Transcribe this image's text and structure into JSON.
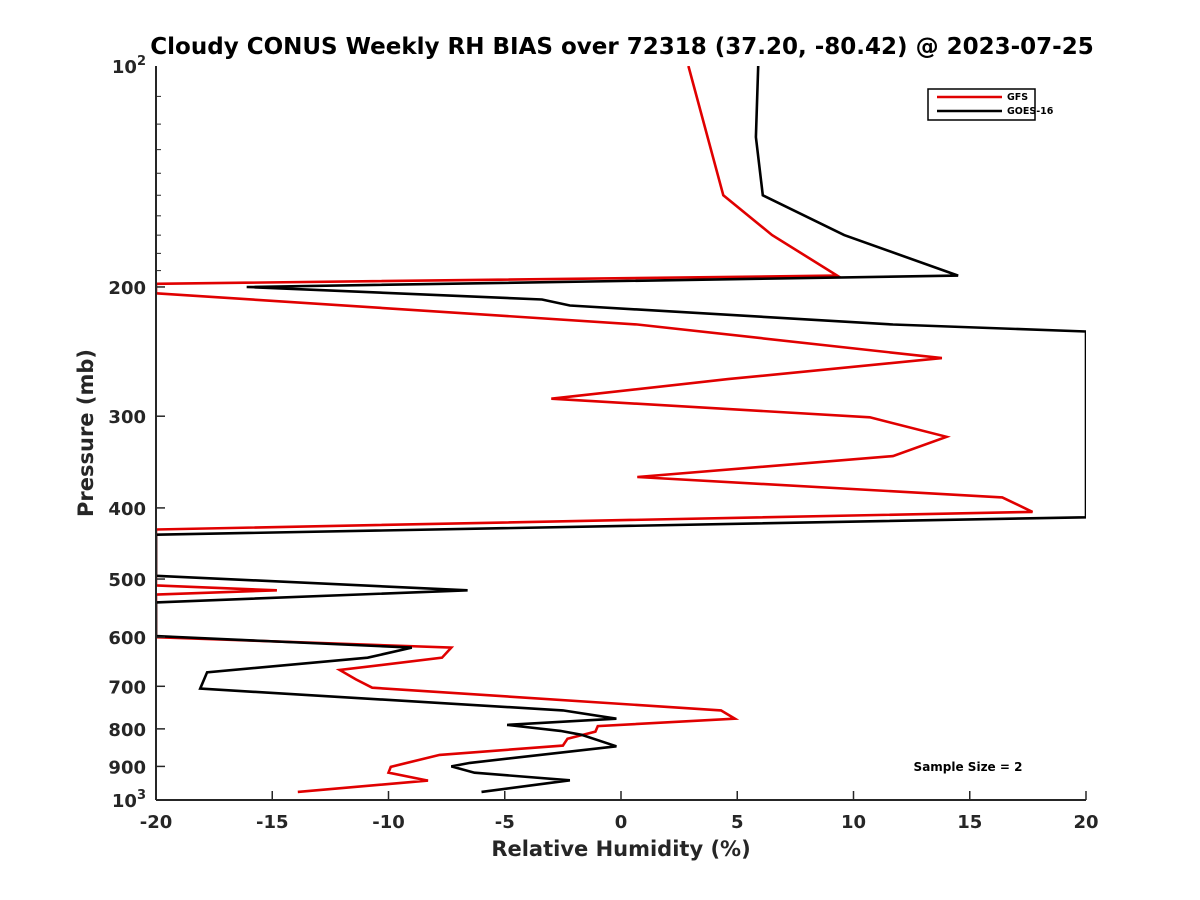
{
  "chart_data": {
    "type": "line",
    "title": "Cloudy CONUS Weekly RH BIAS over 72318 (37.20, -80.42) @ 2023-07-25",
    "xlabel": "Relative Humidity (%)",
    "ylabel": "Pressure (mb)",
    "xlim": [
      -20,
      20
    ],
    "ylim": [
      100,
      1000
    ],
    "yscale": "log",
    "y_reversed": true,
    "grid": false,
    "legend_position": "top-right",
    "x_ticks": [
      -20,
      -15,
      -10,
      -5,
      0,
      5,
      10,
      15,
      20
    ],
    "x_tick_labels": [
      "-20",
      "-15",
      "-10",
      "-5",
      "0",
      "5",
      "10",
      "15",
      "20"
    ],
    "y_ticks": [
      200,
      300,
      400,
      500,
      600,
      700,
      800,
      900
    ],
    "y_tick_labels": [
      "200",
      "300",
      "400",
      "500",
      "600",
      "700",
      "800",
      "900"
    ],
    "y_top_label": {
      "base": "10",
      "exp": "2"
    },
    "y_bottom_label": {
      "base": "10",
      "exp": "3"
    },
    "series": [
      {
        "name": "GFS",
        "color": "#e00000",
        "points": [
          [
            2.9,
            100
          ],
          [
            4.4,
            150
          ],
          [
            6.5,
            170
          ],
          [
            9.3,
            193
          ],
          [
            -20,
            198
          ],
          [
            -20,
            204
          ],
          [
            0.7,
            225
          ],
          [
            13.8,
            250
          ],
          [
            4.6,
            267
          ],
          [
            -3,
            284
          ],
          [
            10.7,
            301
          ],
          [
            14,
            320
          ],
          [
            11.7,
            340
          ],
          [
            0.7,
            363
          ],
          [
            16.4,
            387
          ],
          [
            17.7,
            405
          ],
          [
            -20,
            428
          ],
          [
            -20,
            510
          ],
          [
            -14.8,
            518
          ],
          [
            -20,
            525
          ],
          [
            -20,
            600
          ],
          [
            -7.3,
            620
          ],
          [
            -7.7,
            640
          ],
          [
            -12.1,
            665
          ],
          [
            -11.4,
            685
          ],
          [
            -10.7,
            703
          ],
          [
            4.3,
            755
          ],
          [
            4.9,
            775
          ],
          [
            -1,
            793
          ],
          [
            -1.1,
            807
          ],
          [
            -2.3,
            825
          ],
          [
            -2.5,
            843
          ],
          [
            -7.8,
            868
          ],
          [
            -9.9,
            901
          ],
          [
            -10,
            918
          ],
          [
            -8.3,
            941
          ],
          [
            -13.9,
            975
          ]
        ]
      },
      {
        "name": "GOES-16",
        "color": "#000000",
        "points": [
          [
            5.9,
            100
          ],
          [
            5.8,
            125
          ],
          [
            6.1,
            150
          ],
          [
            9.6,
            170
          ],
          [
            14.5,
            193
          ],
          [
            -16.1,
            200
          ],
          [
            -3.4,
            208
          ],
          [
            -2.2,
            212
          ],
          [
            11.7,
            225
          ],
          [
            20,
            230
          ],
          [
            20,
            412
          ],
          [
            -20,
            435
          ],
          [
            -20,
            495
          ],
          [
            -6.6,
            518
          ],
          [
            -20,
            538
          ],
          [
            -20,
            598
          ],
          [
            -9,
            620
          ],
          [
            -10.9,
            640
          ],
          [
            -17.8,
            670
          ],
          [
            -18.1,
            705
          ],
          [
            -2.5,
            755
          ],
          [
            -0.2,
            775
          ],
          [
            -4.9,
            790
          ],
          [
            -2.6,
            805
          ],
          [
            -1.7,
            815
          ],
          [
            -0.2,
            845
          ],
          [
            -6.5,
            890
          ],
          [
            -7.3,
            900
          ],
          [
            -6.3,
            918
          ],
          [
            -2.2,
            940
          ],
          [
            -6,
            975
          ]
        ]
      }
    ],
    "legend": [
      {
        "label": "GFS",
        "color": "#e00000"
      },
      {
        "label": "GOES-16",
        "color": "#000000"
      }
    ],
    "annotation": "Sample Size = 2"
  }
}
